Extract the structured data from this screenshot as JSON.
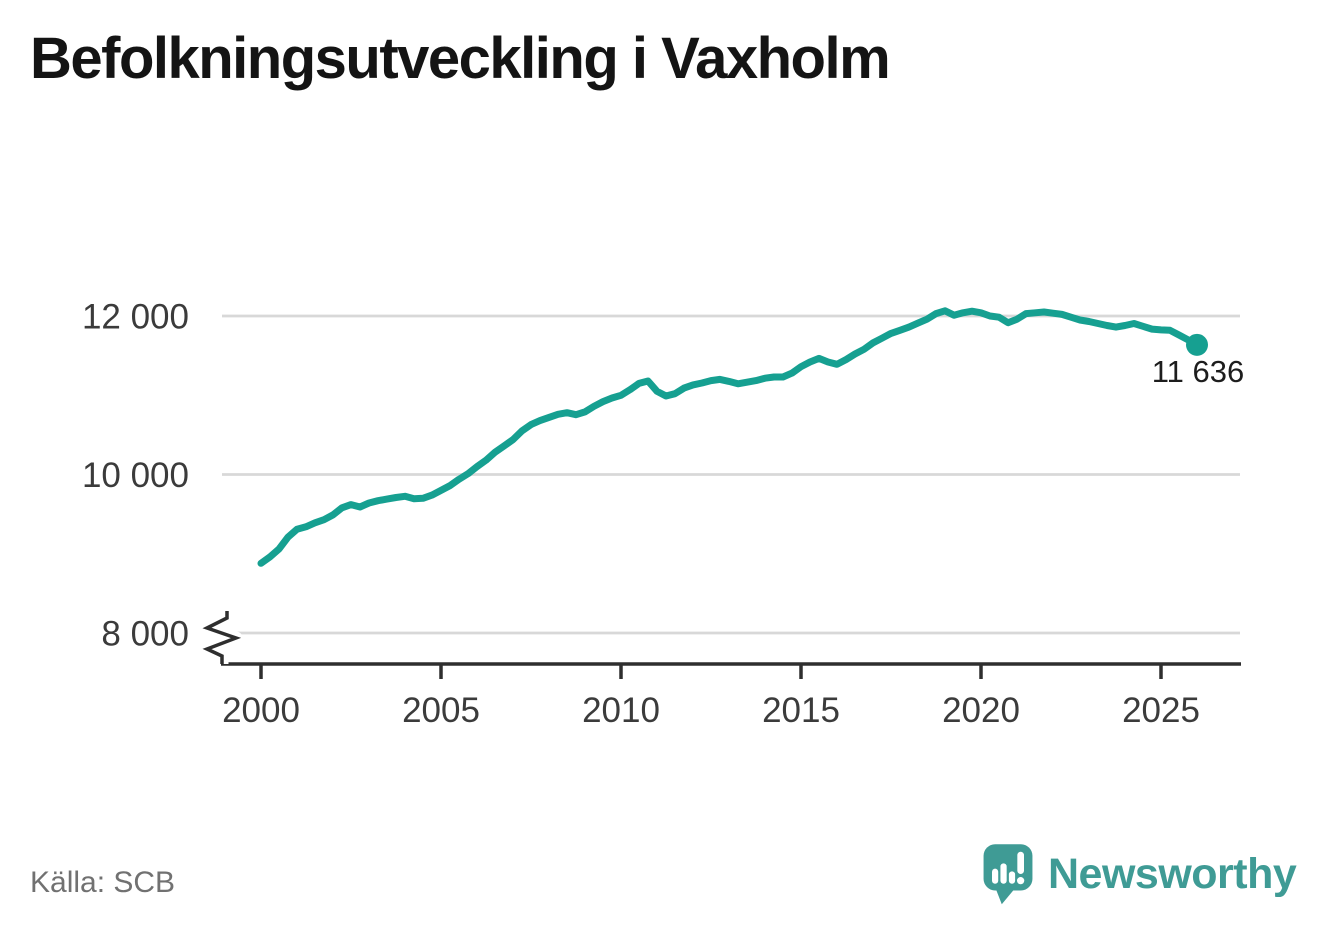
{
  "title": "Befolkningsutveckling i Vaxholm",
  "source": "Källa: SCB",
  "branding": {
    "name": "Newsworthy",
    "color": "#3f9b95"
  },
  "chart_data": {
    "type": "line",
    "title": "Befolkningsutveckling i Vaxholm",
    "xlabel": "",
    "ylabel": "",
    "x_ticks": [
      2000,
      2005,
      2010,
      2015,
      2020,
      2025
    ],
    "x_tick_labels": [
      "2000",
      "2005",
      "2010",
      "2015",
      "2020",
      "2025"
    ],
    "y_ticks": [
      8000,
      10000,
      12000
    ],
    "y_tick_labels": [
      "8 000",
      "10 000",
      "12 000"
    ],
    "ylim": [
      8000,
      12300
    ],
    "x_range_years": [
      2000,
      2026
    ],
    "grid": true,
    "axis_break_at_y_start": true,
    "line_color": "#16a091",
    "grid_color": "#d8d8d8",
    "axis_color": "#2e2e2e",
    "end_value": 11636,
    "end_label": "11 636",
    "series": [
      {
        "name": "Befolkning",
        "start_year": 2000,
        "interval_years": 0.25,
        "values": [
          8880,
          8960,
          9060,
          9210,
          9310,
          9340,
          9390,
          9430,
          9490,
          9580,
          9620,
          9590,
          9640,
          9670,
          9690,
          9710,
          9725,
          9695,
          9700,
          9740,
          9800,
          9860,
          9940,
          10010,
          10100,
          10180,
          10280,
          10360,
          10440,
          10550,
          10630,
          10680,
          10720,
          10760,
          10780,
          10755,
          10790,
          10860,
          10920,
          10965,
          11000,
          11070,
          11150,
          11180,
          11050,
          10990,
          11020,
          11090,
          11130,
          11155,
          11185,
          11200,
          11175,
          11145,
          11165,
          11185,
          11215,
          11230,
          11230,
          11280,
          11360,
          11420,
          11465,
          11420,
          11390,
          11450,
          11520,
          11580,
          11660,
          11720,
          11780,
          11820,
          11860,
          11910,
          11960,
          12030,
          12065,
          12010,
          12040,
          12060,
          12040,
          12000,
          11985,
          11915,
          11960,
          12030,
          12040,
          12050,
          12035,
          12020,
          11985,
          11950,
          11930,
          11905,
          11880,
          11860,
          11880,
          11905,
          11870,
          11835,
          11825,
          11820,
          11760,
          11700,
          11636
        ]
      }
    ]
  }
}
